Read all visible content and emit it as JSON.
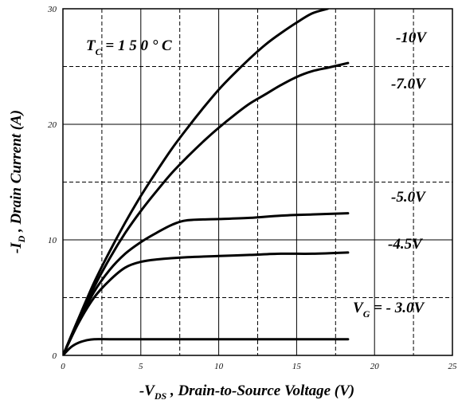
{
  "chart_data": {
    "type": "line",
    "title": "",
    "xlabel": "-V DS , Drain-to-Source Voltage (V)",
    "xlabel_parts": {
      "prefix": "-V",
      "subscript": "DS",
      "suffix": " , Drain-to-Source Voltage (V)"
    },
    "ylabel": "-I D , Drain Current (A)",
    "ylabel_parts": {
      "prefix": "-I",
      "subscript": "D",
      "suffix": " , Drain Current (A)"
    },
    "xlim": [
      0,
      25
    ],
    "ylim": [
      0,
      30
    ],
    "x_ticks": [
      0,
      5,
      10,
      15,
      20,
      25
    ],
    "y_ticks": [
      0,
      10,
      20,
      30
    ],
    "x_dashed_grid": [
      2.5,
      7.5,
      12.5,
      17.5,
      22.5
    ],
    "y_dashed_grid": [
      5,
      15,
      25
    ],
    "grid": true,
    "annotation": {
      "prefix": "T",
      "subscript": "C",
      "suffix": " = 1 5 0 ° C"
    },
    "series": [
      {
        "name": "-10V",
        "x": [
          0,
          1,
          2,
          3,
          4,
          5,
          6,
          7,
          8,
          9,
          10,
          11,
          12,
          13,
          14,
          15,
          16,
          17
        ],
        "y": [
          0,
          3.2,
          6.3,
          9.0,
          11.5,
          13.8,
          15.9,
          17.9,
          19.7,
          21.4,
          23.0,
          24.4,
          25.7,
          26.9,
          27.9,
          28.8,
          29.6,
          30.0
        ]
      },
      {
        "name": "-7.0V",
        "x": [
          0,
          1,
          2,
          3,
          4,
          5,
          6,
          7,
          8,
          9,
          10,
          11,
          12,
          13,
          14,
          15,
          16,
          17,
          18.3
        ],
        "y": [
          0,
          3.0,
          5.9,
          8.4,
          10.6,
          12.5,
          14.2,
          15.8,
          17.2,
          18.5,
          19.7,
          20.8,
          21.8,
          22.6,
          23.4,
          24.1,
          24.6,
          24.9,
          25.3
        ]
      },
      {
        "name": "-5.0V",
        "x": [
          0,
          1,
          2,
          3,
          4,
          5,
          6,
          7,
          8,
          10,
          12,
          14,
          16,
          18.3
        ],
        "y": [
          0,
          2.9,
          5.5,
          7.4,
          8.8,
          9.8,
          10.6,
          11.3,
          11.7,
          11.8,
          11.9,
          12.1,
          12.2,
          12.3
        ]
      },
      {
        "name": "-4.5V",
        "x": [
          0,
          1,
          2,
          3,
          4,
          5,
          6,
          8,
          10,
          12,
          14,
          16,
          18.3
        ],
        "y": [
          0,
          2.8,
          5.0,
          6.5,
          7.6,
          8.1,
          8.3,
          8.5,
          8.6,
          8.7,
          8.8,
          8.8,
          8.9
        ]
      },
      {
        "name": "V G = - 3.0V",
        "x": [
          0,
          0.5,
          1,
          1.5,
          2,
          3,
          5,
          10,
          15,
          18.3
        ],
        "y": [
          0,
          0.7,
          1.1,
          1.3,
          1.4,
          1.4,
          1.4,
          1.4,
          1.4,
          1.4
        ]
      }
    ],
    "curve_labels": [
      "-10V",
      "-7.0V",
      "-5.0V",
      "-4.5V"
    ],
    "vg_label": {
      "prefix": "V",
      "subscript": "G",
      "suffix": " = - 3.0V"
    }
  }
}
